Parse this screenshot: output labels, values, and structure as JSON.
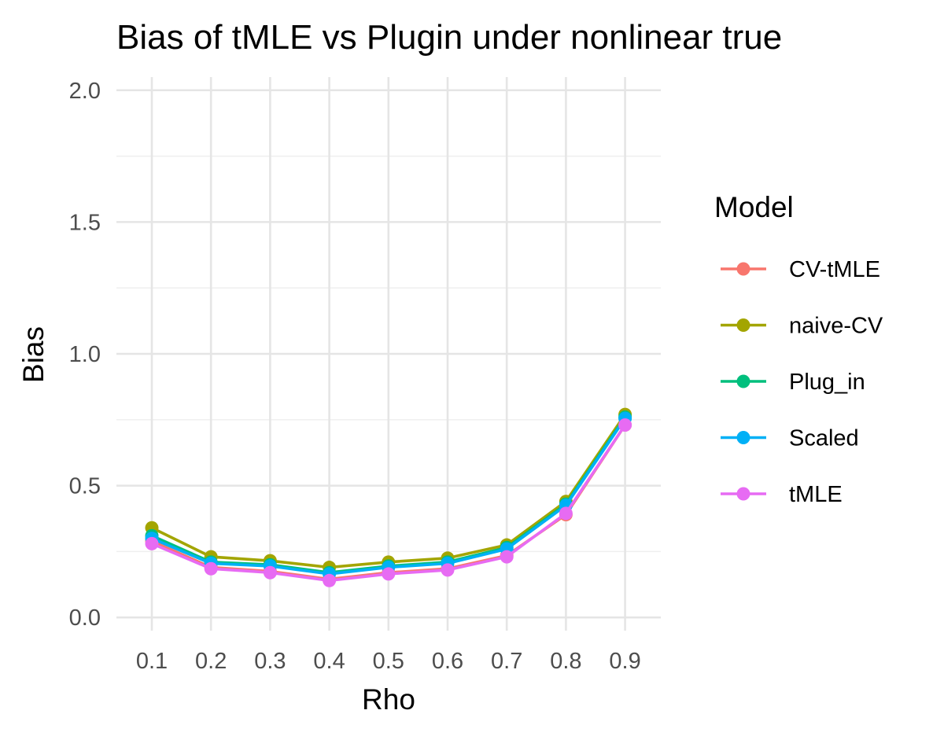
{
  "chart_data": {
    "type": "line",
    "title": "Bias of tMLE vs Plugin under nonlinear true",
    "xlabel": "Rho",
    "ylabel": "Bias",
    "x": [
      0.1,
      0.2,
      0.3,
      0.4,
      0.5,
      0.6,
      0.7,
      0.8,
      0.9
    ],
    "x_tick_labels": [
      "0.1",
      "0.2",
      "0.3",
      "0.4",
      "0.5",
      "0.6",
      "0.7",
      "0.8",
      "0.9"
    ],
    "ylim": [
      -0.05,
      2.05
    ],
    "y_ticks": [
      0.0,
      0.5,
      1.0,
      1.5,
      2.0
    ],
    "y_tick_labels": [
      "0.0",
      "0.5",
      "1.0",
      "1.5",
      "2.0"
    ],
    "grid": true,
    "legend": {
      "title": "Model",
      "position": "right"
    },
    "series": [
      {
        "name": "CV-tMLE",
        "color": "#F8766D",
        "values": [
          0.29,
          0.19,
          0.175,
          0.145,
          0.17,
          0.185,
          0.235,
          0.39,
          0.73
        ]
      },
      {
        "name": "naive-CV",
        "color": "#A3A500",
        "values": [
          0.34,
          0.23,
          0.215,
          0.19,
          0.21,
          0.225,
          0.275,
          0.44,
          0.77
        ]
      },
      {
        "name": "Plug_in",
        "color": "#00BF7D",
        "values": [
          0.31,
          0.21,
          0.2,
          0.17,
          0.195,
          0.21,
          0.265,
          0.43,
          0.76
        ]
      },
      {
        "name": "Scaled",
        "color": "#00B0F6",
        "values": [
          0.3,
          0.205,
          0.195,
          0.165,
          0.19,
          0.205,
          0.26,
          0.425,
          0.755
        ]
      },
      {
        "name": "tMLE",
        "color": "#E76BF3",
        "values": [
          0.28,
          0.185,
          0.17,
          0.14,
          0.165,
          0.18,
          0.23,
          0.395,
          0.73
        ]
      }
    ]
  }
}
